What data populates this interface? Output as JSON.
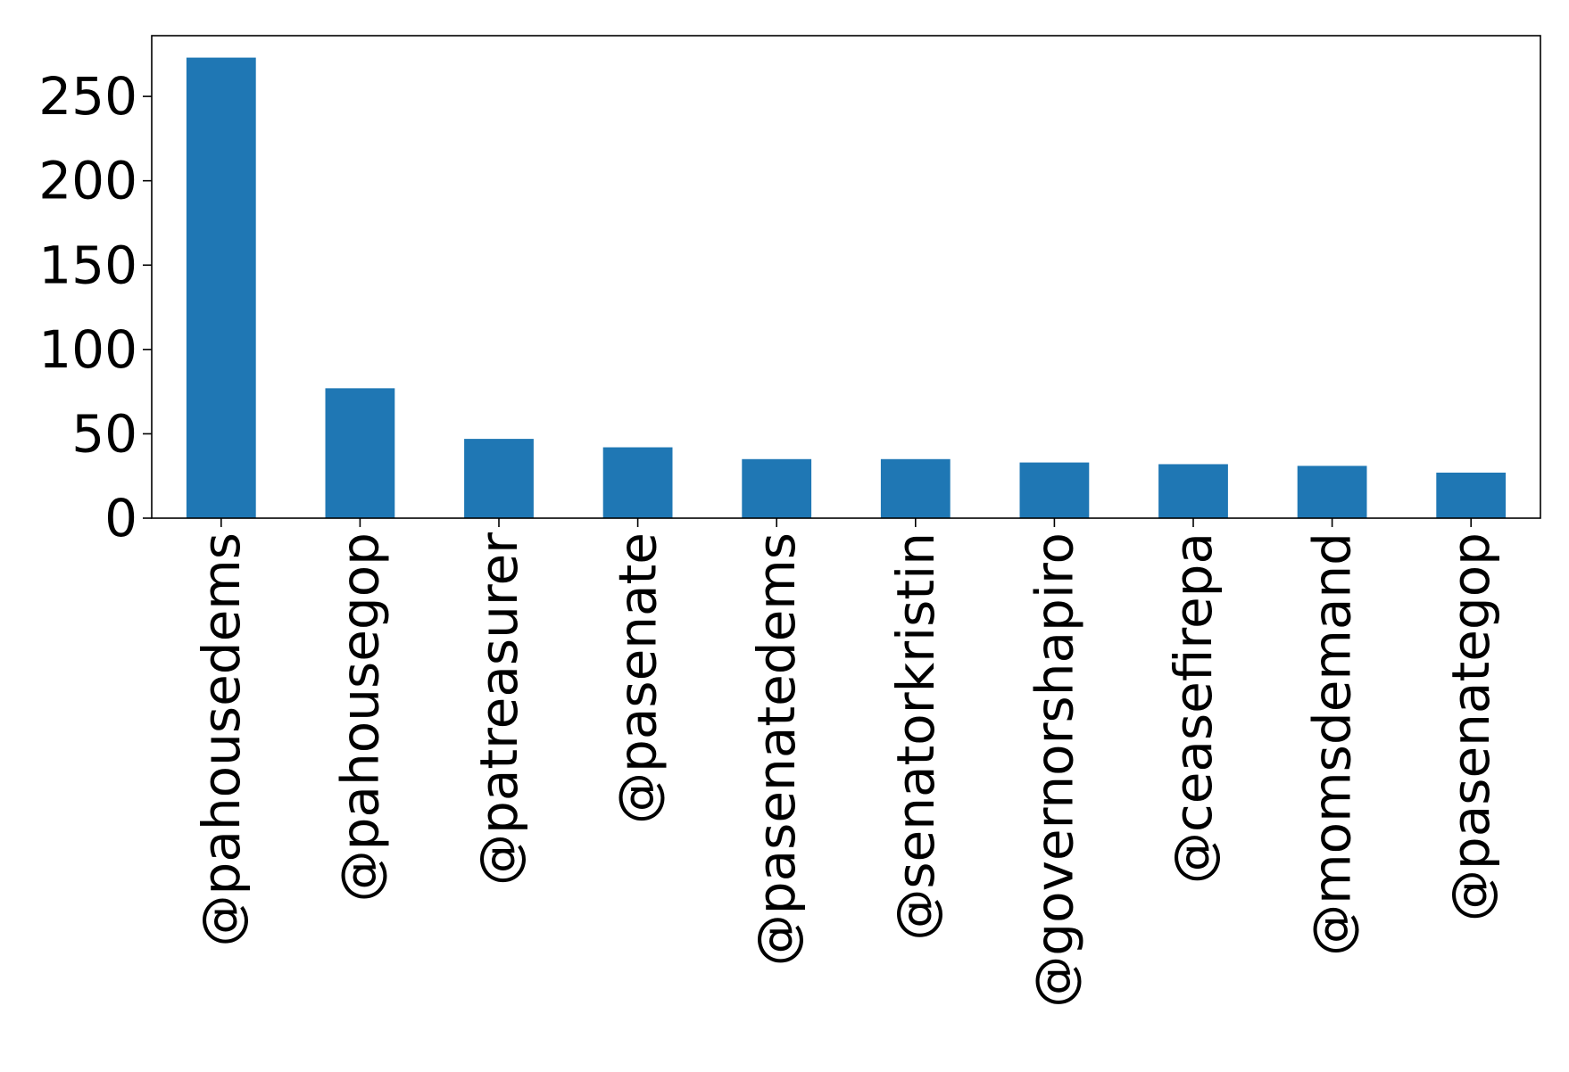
{
  "chart_data": {
    "type": "bar",
    "title": "",
    "xlabel": "",
    "ylabel": "",
    "categories": [
      "@pahousedems",
      "@pahousegop",
      "@patreasurer",
      "@pasenate",
      "@pasenatedems",
      "@senatorkristin",
      "@governorshapiro",
      "@ceasefirepa",
      "@momsdemand",
      "@pasenategop"
    ],
    "values": [
      273,
      77,
      47,
      42,
      35,
      35,
      33,
      32,
      31,
      27
    ],
    "ylim": [
      0,
      286
    ],
    "yticks": [
      0,
      50,
      100,
      150,
      200,
      250
    ],
    "grid": false,
    "legend": "none",
    "bar_color": "#1f77b4"
  }
}
